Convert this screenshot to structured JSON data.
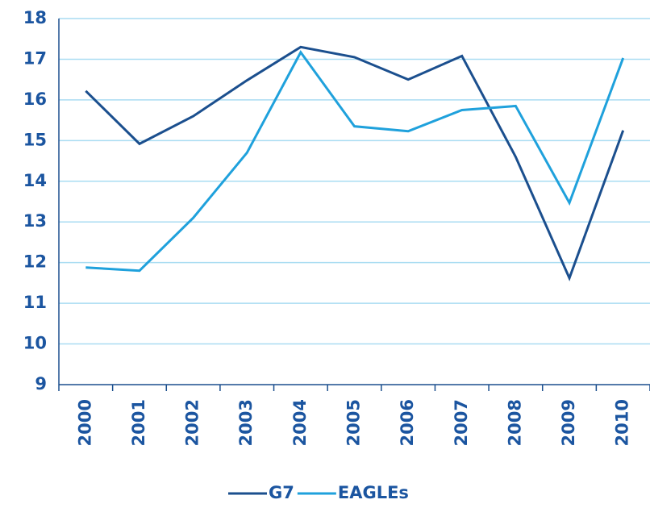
{
  "chart_data": {
    "type": "line",
    "categories": [
      "2000",
      "2001",
      "2002",
      "2003",
      "2004",
      "2005",
      "2006",
      "2007",
      "2008",
      "2009",
      "2010"
    ],
    "series": [
      {
        "name": "G7",
        "color": "#1b4f8e",
        "values": [
          16.22,
          14.92,
          15.6,
          16.48,
          17.3,
          17.05,
          16.5,
          17.08,
          14.6,
          11.62,
          15.25
        ]
      },
      {
        "name": "EAGLEs",
        "color": "#1fa1dc",
        "values": [
          11.88,
          11.8,
          13.1,
          14.7,
          17.17,
          15.35,
          15.23,
          15.75,
          15.85,
          13.47,
          17.03
        ]
      }
    ],
    "ylim": [
      9,
      18
    ],
    "yticks": [
      9,
      10,
      11,
      12,
      13,
      14,
      15,
      16,
      17,
      18
    ],
    "grid": true,
    "legend": "bottom"
  }
}
